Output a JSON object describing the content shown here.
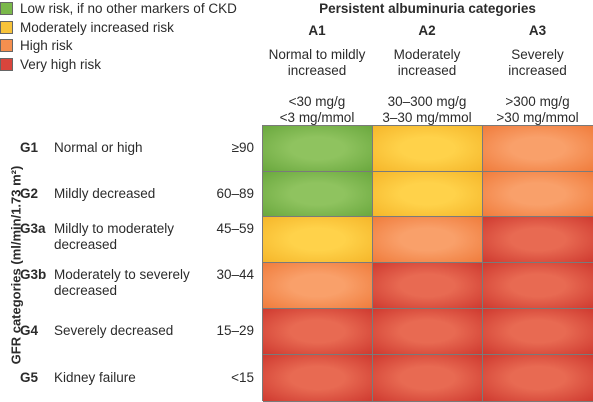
{
  "legend": [
    {
      "label": "Low risk, if no other markers of CKD",
      "color": "#7ab84a"
    },
    {
      "label": "Moderately increased risk",
      "color": "#f7c33a"
    },
    {
      "label": "High risk",
      "color": "#f58f4f"
    },
    {
      "label": "Very high risk",
      "color": "#d9453c"
    }
  ],
  "columns_title": "Persistent albuminuria categories",
  "columns": [
    {
      "code": "A1",
      "desc": "Normal to mildly increased",
      "range": "<30 mg/g\n<3 mg/mmol"
    },
    {
      "code": "A2",
      "desc": "Moderately increased",
      "range": "30–300 mg/g\n3–30 mg/mmol"
    },
    {
      "code": "A3",
      "desc": "Severely increased",
      "range": ">300 mg/g\n>30 mg/mmol"
    }
  ],
  "rows_title": "GFR categories (ml/min/1.73 m²)",
  "rows": [
    {
      "code": "G1",
      "desc": "Normal or high",
      "range": "≥90"
    },
    {
      "code": "G2",
      "desc": "Mildly decreased",
      "range": "60–89"
    },
    {
      "code": "G3a",
      "desc": "Mildly to moderately decreased",
      "range": "45–59"
    },
    {
      "code": "G3b",
      "desc": "Moderately to severely decreased",
      "range": "30–44"
    },
    {
      "code": "G4",
      "desc": "Severely decreased",
      "range": "15–29"
    },
    {
      "code": "G5",
      "desc": "Kidney failure",
      "range": "<15"
    }
  ],
  "risk_matrix": [
    [
      "low",
      "moderate",
      "high"
    ],
    [
      "low",
      "moderate",
      "high"
    ],
    [
      "moderate",
      "high",
      "very-high"
    ],
    [
      "high",
      "very-high",
      "very-high"
    ],
    [
      "very-high",
      "very-high",
      "very-high"
    ],
    [
      "very-high",
      "very-high",
      "very-high"
    ]
  ],
  "risk_colors": {
    "low": {
      "center": "#8fc35f",
      "edge": "#6aa83e"
    },
    "moderate": {
      "center": "#ffd24a",
      "edge": "#f5b62a"
    },
    "high": {
      "center": "#f9a06a",
      "edge": "#f07c3c"
    },
    "very-high": {
      "center": "#e86a52",
      "edge": "#cf3a30"
    }
  }
}
